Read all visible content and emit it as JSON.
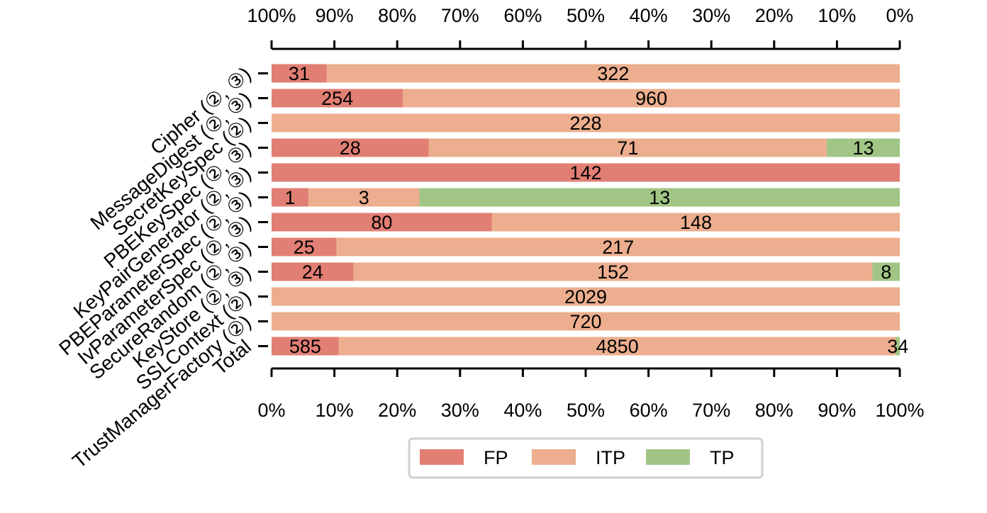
{
  "chart_data": {
    "type": "bar",
    "orientation": "horizontal",
    "stacked": "normalized-percent",
    "categories": [
      "Cipher (②, ③)",
      "MessageDigest (②, ③)",
      "SecretKeySpec (②)",
      "PBEKeySpec (②, ③)",
      "KeyPairGenerator (②, ③)",
      "PBEParameterSpec (②, ③)",
      "IvParameterSpec (②, ③)",
      "SecureRandom (②, ③)",
      "KeyStore (②, ③)",
      "SSLContext (②)",
      "TrustManagerFactory (②)",
      "Total"
    ],
    "series": [
      {
        "name": "FP",
        "color": "#e27f74",
        "values": [
          31,
          254,
          0,
          28,
          142,
          1,
          80,
          25,
          24,
          0,
          0,
          585
        ]
      },
      {
        "name": "ITP",
        "color": "#ecae8e",
        "values": [
          322,
          960,
          228,
          71,
          0,
          3,
          148,
          217,
          152,
          2029,
          720,
          4850
        ]
      },
      {
        "name": "TP",
        "color": "#a0c585",
        "values": [
          0,
          0,
          0,
          13,
          0,
          13,
          0,
          0,
          8,
          0,
          0,
          34
        ]
      }
    ],
    "top_axis_ticks": [
      "100%",
      "90%",
      "80%",
      "70%",
      "60%",
      "50%",
      "40%",
      "30%",
      "20%",
      "10%",
      "0%"
    ],
    "bottom_axis_ticks": [
      "0%",
      "10%",
      "20%",
      "30%",
      "40%",
      "50%",
      "60%",
      "70%",
      "80%",
      "90%",
      "100%"
    ],
    "xlim": [
      0,
      100
    ],
    "grid": false,
    "legend_position": "bottom-center"
  }
}
